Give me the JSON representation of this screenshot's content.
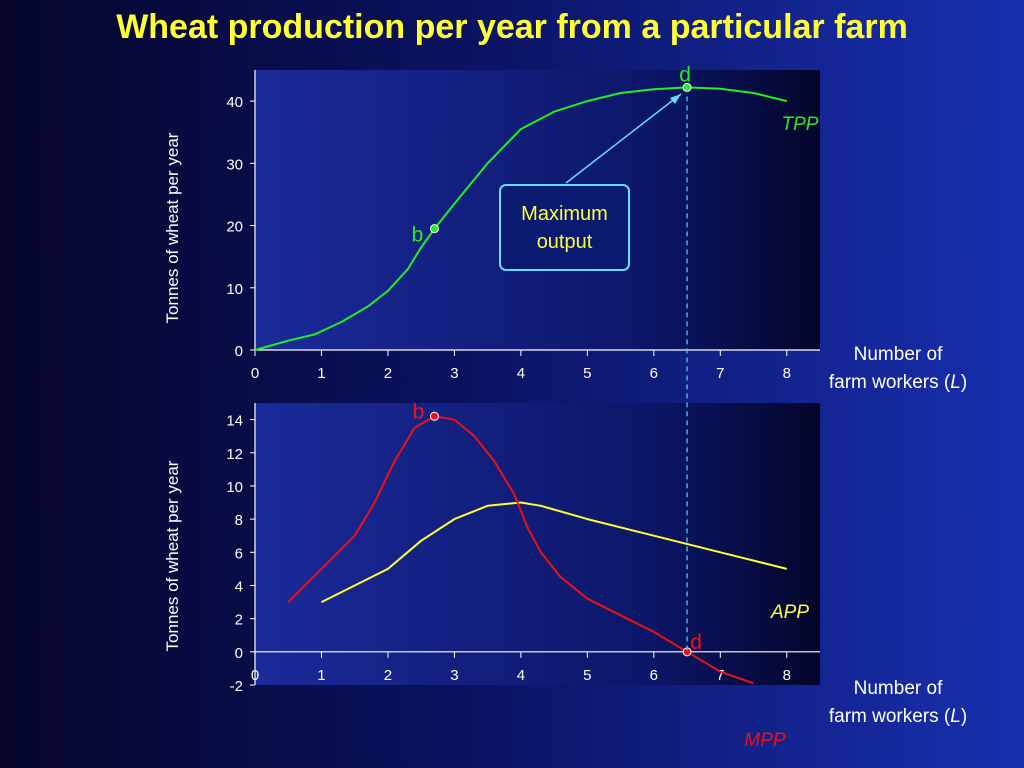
{
  "title": "Wheat production per year from a particular farm",
  "colors": {
    "title": "#ffff33",
    "tpp": "#22ee22",
    "app": "#ffff33",
    "mpp": "#ee1111",
    "guide": "#44ccff",
    "text": "#ffffff"
  },
  "callout": {
    "line1": "Maximum",
    "line2": "output"
  },
  "chart_data": [
    {
      "type": "line",
      "title": "",
      "xlabel_line1": "Number of",
      "xlabel_prefix": "farm workers (",
      "xlabel_var": "L",
      "xlabel_suffix": ")",
      "ylabel": "Tonnes of wheat  per year",
      "xlim": [
        0,
        8.5
      ],
      "ylim": [
        0,
        45
      ],
      "x_ticks": [
        0,
        1,
        2,
        3,
        4,
        5,
        6,
        7,
        8
      ],
      "y_ticks": [
        0,
        10,
        20,
        30,
        40
      ],
      "series": [
        {
          "name": "TPP",
          "x": [
            0,
            0.5,
            0.9,
            1.3,
            1.7,
            2.0,
            2.3,
            2.5,
            2.7,
            3.0,
            3.5,
            4.0,
            4.5,
            5.0,
            5.5,
            6.0,
            6.5,
            7.0,
            7.5,
            8.0
          ],
          "y": [
            0,
            1.5,
            2.5,
            4.5,
            7,
            9.5,
            13,
            16.5,
            19.5,
            23.5,
            30,
            35.5,
            38.3,
            40,
            41.3,
            41.9,
            42.2,
            42.0,
            41.3,
            40
          ]
        }
      ],
      "points": [
        {
          "label": "b",
          "x": 2.7,
          "y": 19.5
        },
        {
          "label": "d",
          "x": 6.5,
          "y": 42.2
        }
      ]
    },
    {
      "type": "line",
      "title": "",
      "xlabel_line1": "Number of",
      "xlabel_prefix": "farm workers (",
      "xlabel_var": "L",
      "xlabel_suffix": ")",
      "ylabel": "Tonnes of wheat  per year",
      "xlim": [
        0,
        8.5
      ],
      "ylim": [
        -2,
        15
      ],
      "x_ticks": [
        0,
        1,
        2,
        3,
        4,
        5,
        6,
        7,
        8
      ],
      "y_ticks": [
        -2,
        0,
        2,
        4,
        6,
        8,
        10,
        12,
        14
      ],
      "series": [
        {
          "name": "APP",
          "x": [
            1,
            1.5,
            2,
            2.5,
            3,
            3.5,
            4,
            4.3,
            5,
            6,
            7,
            8
          ],
          "y": [
            3,
            4,
            5,
            6.7,
            8,
            8.8,
            9,
            8.8,
            8,
            7,
            6,
            5
          ]
        },
        {
          "name": "MPP",
          "x": [
            0.5,
            1.0,
            1.5,
            1.8,
            2.1,
            2.4,
            2.7,
            3.0,
            3.3,
            3.6,
            3.9,
            4.1,
            4.3,
            4.6,
            5.0,
            5.5,
            6.0,
            6.5,
            7.0,
            7.5
          ],
          "y": [
            3,
            5,
            7,
            9,
            11.5,
            13.5,
            14.2,
            14,
            13,
            11.5,
            9.5,
            7.5,
            6,
            4.5,
            3.2,
            2.2,
            1.2,
            0,
            -1.2,
            -1.9
          ]
        }
      ],
      "points": [
        {
          "label": "b",
          "x": 2.7,
          "y": 14.2
        },
        {
          "label": "d",
          "x": 6.5,
          "y": 0
        }
      ]
    }
  ]
}
